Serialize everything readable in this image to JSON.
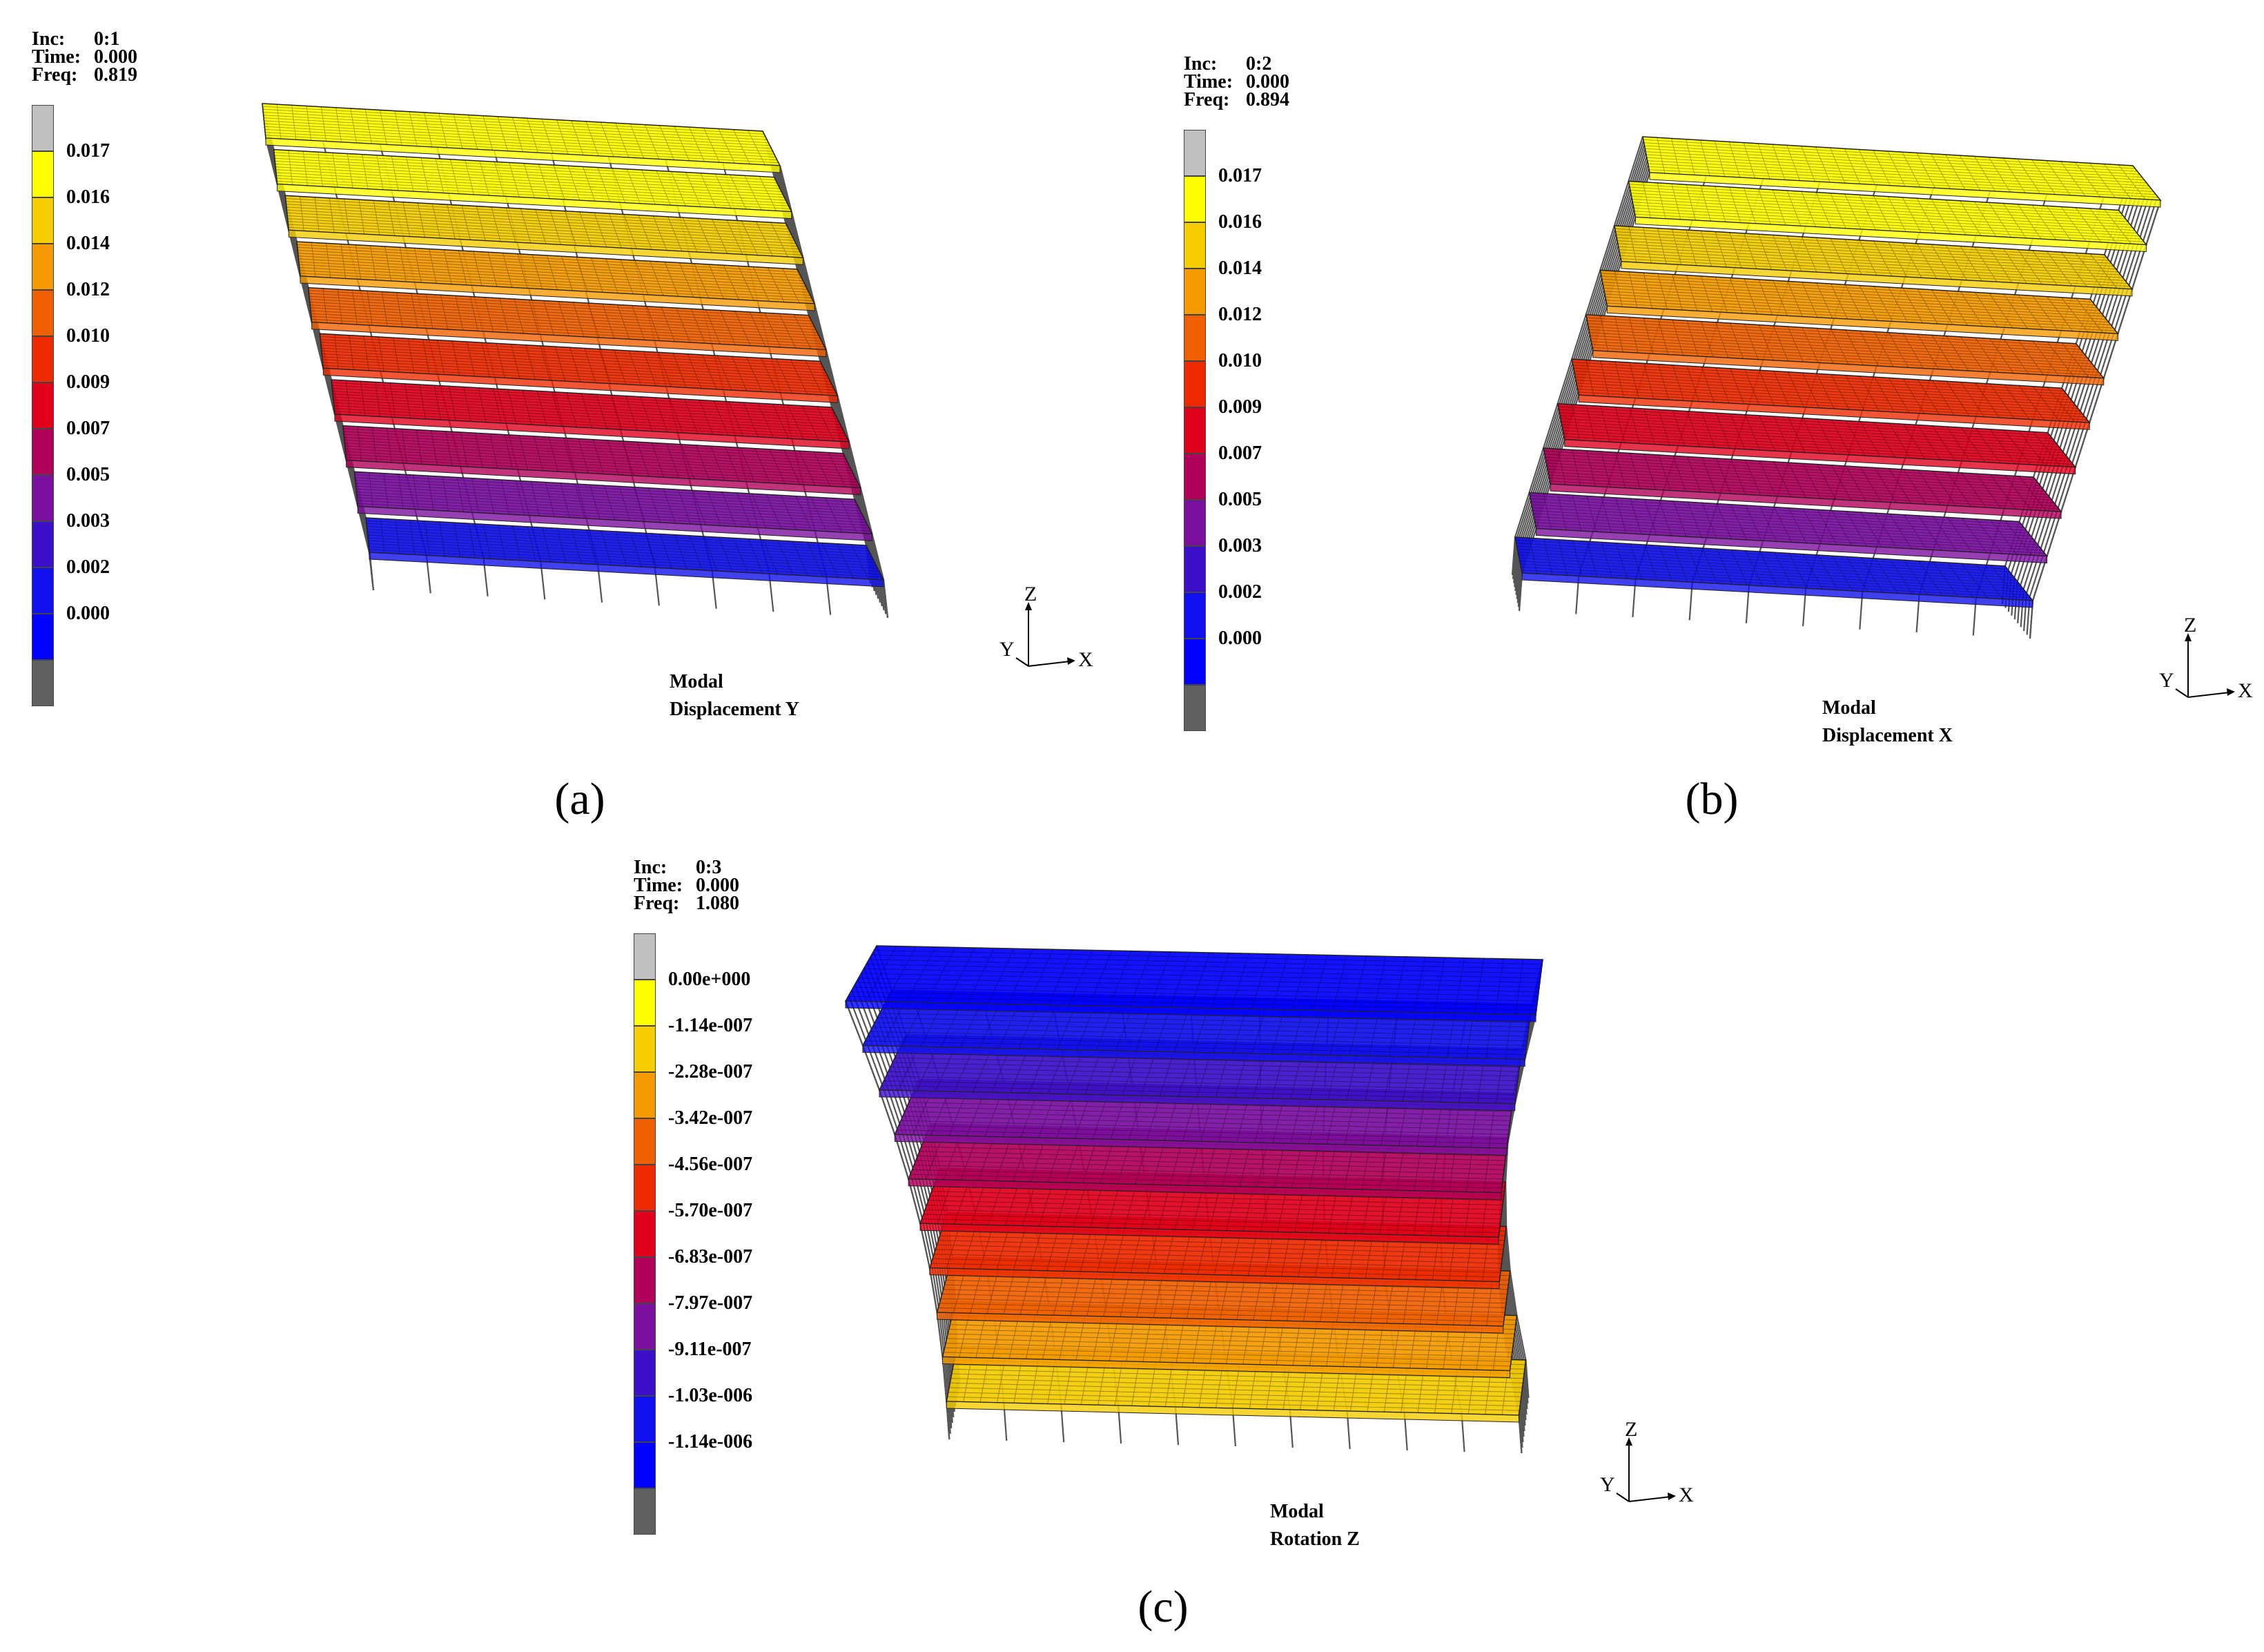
{
  "panels": [
    {
      "id": "a",
      "label": "(a)",
      "info": {
        "inc_key": "Inc:",
        "inc_val": "0:1",
        "time_key": "Time:",
        "time_val": "0.000",
        "freq_key": "Freq:",
        "freq_val": "0.819"
      },
      "legend": [
        "0.017",
        "0.016",
        "0.014",
        "0.012",
        "0.010",
        "0.009",
        "0.007",
        "0.005",
        "0.003",
        "0.002",
        "0.000"
      ],
      "caption": [
        "Modal",
        "Displacement Y"
      ],
      "axes": {
        "z": "Z",
        "y": "Y",
        "x": "X"
      }
    },
    {
      "id": "b",
      "label": "(b)",
      "info": {
        "inc_key": "Inc:",
        "inc_val": "0:2",
        "time_key": "Time:",
        "time_val": "0.000",
        "freq_key": "Freq:",
        "freq_val": "0.894"
      },
      "legend": [
        "0.017",
        "0.016",
        "0.014",
        "0.012",
        "0.010",
        "0.009",
        "0.007",
        "0.005",
        "0.003",
        "0.002",
        "0.000"
      ],
      "caption": [
        "Modal",
        "Displacement X"
      ],
      "axes": {
        "z": "Z",
        "y": "Y",
        "x": "X"
      }
    },
    {
      "id": "c",
      "label": "(c)",
      "info": {
        "inc_key": "Inc:",
        "inc_val": "0:3",
        "time_key": "Time:",
        "time_val": "0.000",
        "freq_key": "Freq:",
        "freq_val": "1.080"
      },
      "legend": [
        "0.00e+000",
        "-1.14e-007",
        "-2.28e-007",
        "-3.42e-007",
        "-4.56e-007",
        "-5.70e-007",
        "-6.83e-007",
        "-7.97e-007",
        "-9.11e-007",
        "-1.03e-006",
        "-1.14e-006"
      ],
      "caption": [
        "Modal",
        "Rotation Z"
      ],
      "axes": {
        "z": "Z",
        "y": "Y",
        "x": "X"
      }
    }
  ],
  "legend_colors": [
    "#c0c0c0",
    "#ffff00",
    "#f4cc00",
    "#f59a00",
    "#f06000",
    "#ee2a00",
    "#e0001c",
    "#b0005a",
    "#7a0fa0",
    "#3c10c8",
    "#1010ee",
    "#0000ff",
    "#606060"
  ]
}
